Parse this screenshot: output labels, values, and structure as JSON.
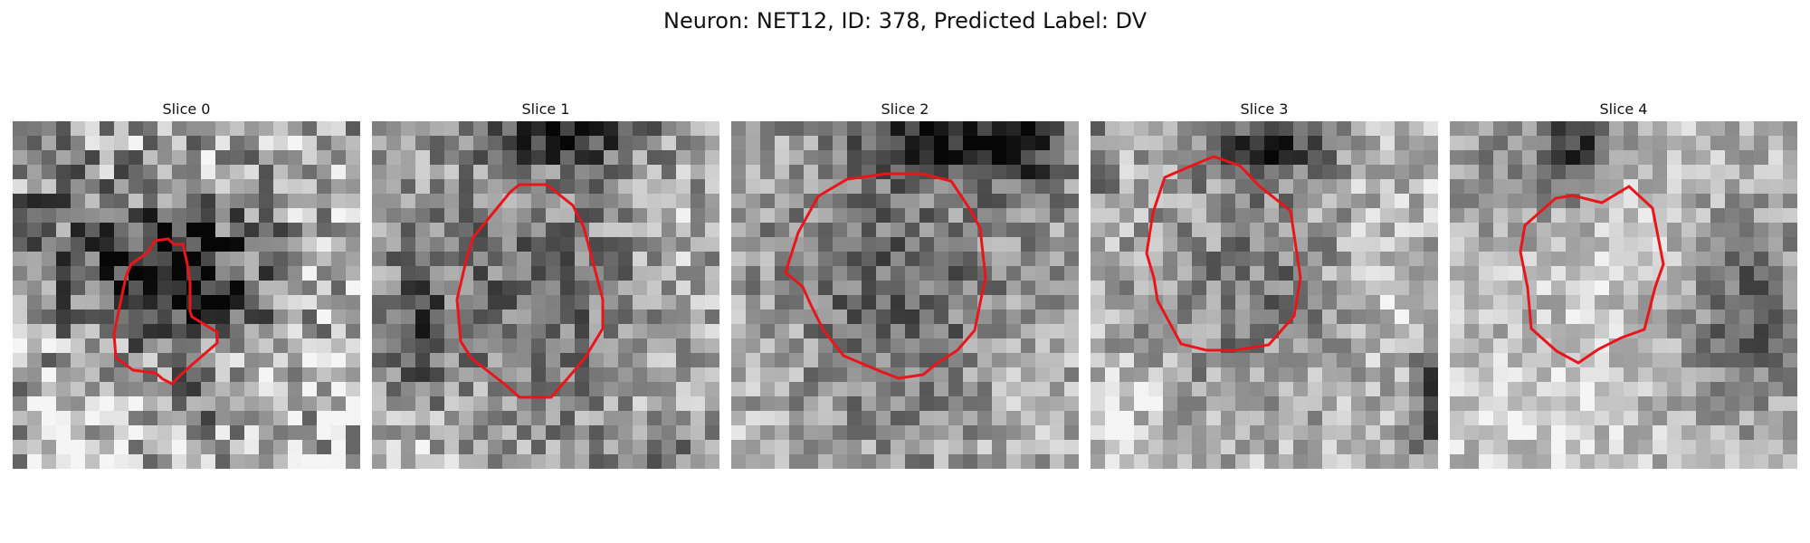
{
  "figure": {
    "title": "Neuron: NET12, ID: 378, Predicted Label: DV"
  },
  "colors": {
    "contour": "#e8161a"
  },
  "panels": [
    {
      "title": "Slice 0"
    },
    {
      "title": "Slice 1"
    },
    {
      "title": "Slice 2"
    },
    {
      "title": "Slice 3"
    },
    {
      "title": "Slice 4"
    }
  ]
}
